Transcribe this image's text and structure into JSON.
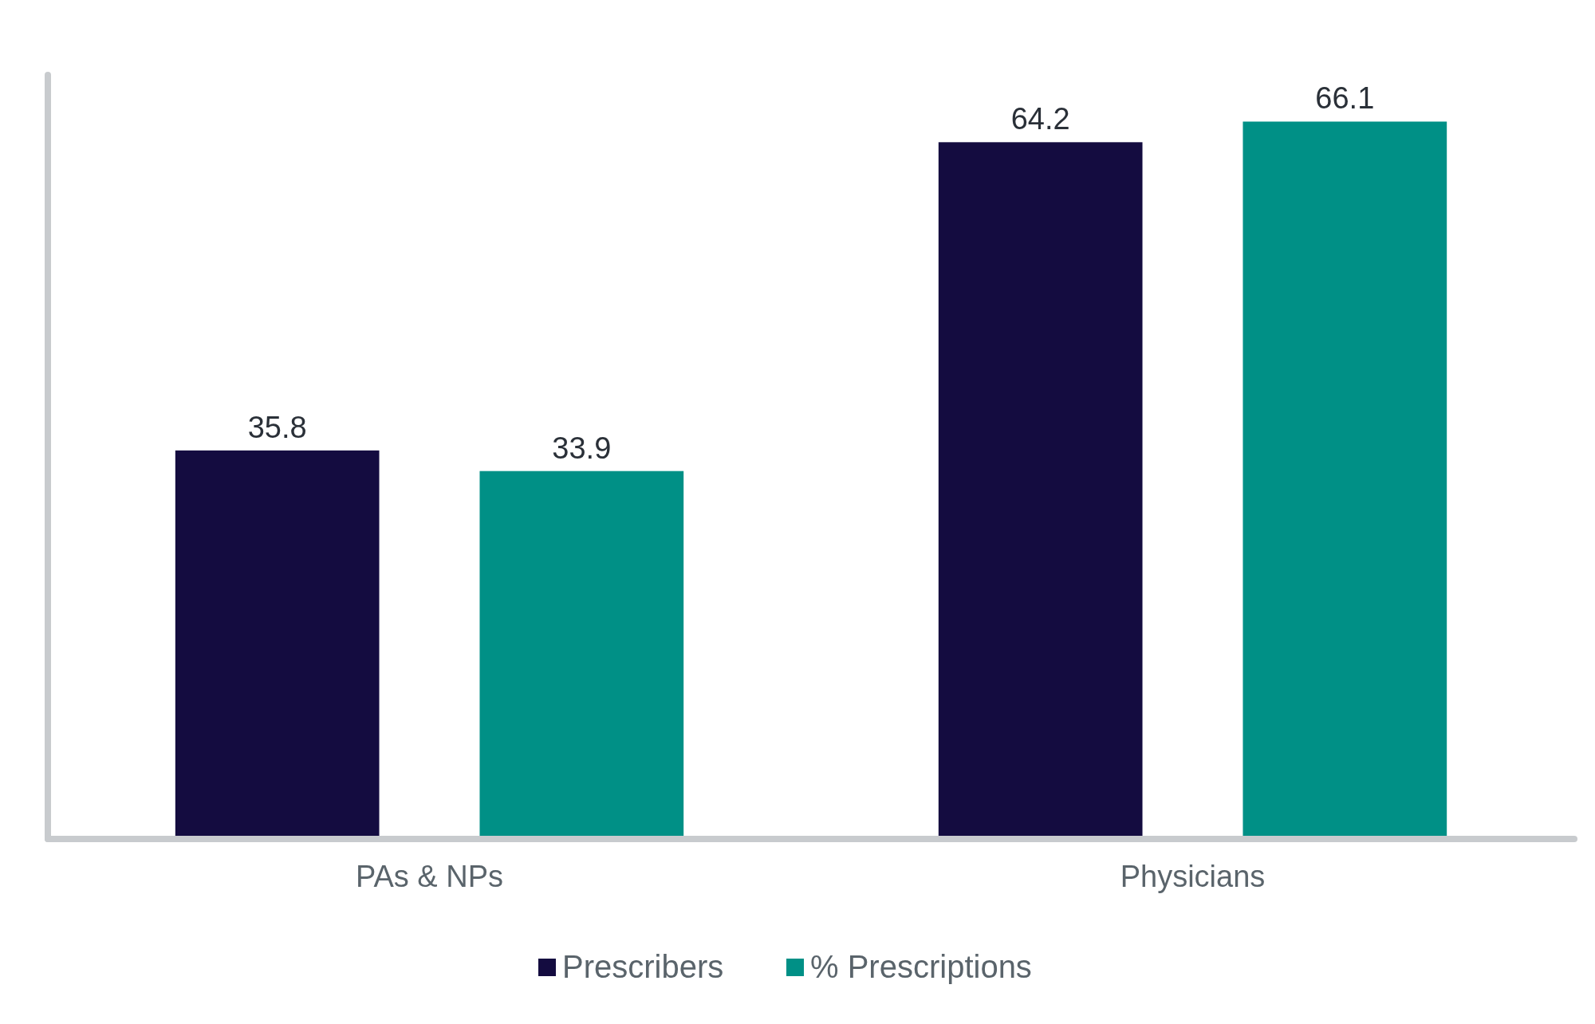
{
  "chart_data": {
    "type": "bar",
    "categories": [
      "PAs & NPs",
      "Physicians"
    ],
    "series": [
      {
        "name": "Prescribers",
        "color": "#140c40",
        "values": [
          35.8,
          64.2
        ]
      },
      {
        "name": "% Prescriptions",
        "color": "#009086",
        "values": [
          33.9,
          66.1
        ]
      }
    ],
    "data_labels": true,
    "legend": "bottom"
  }
}
